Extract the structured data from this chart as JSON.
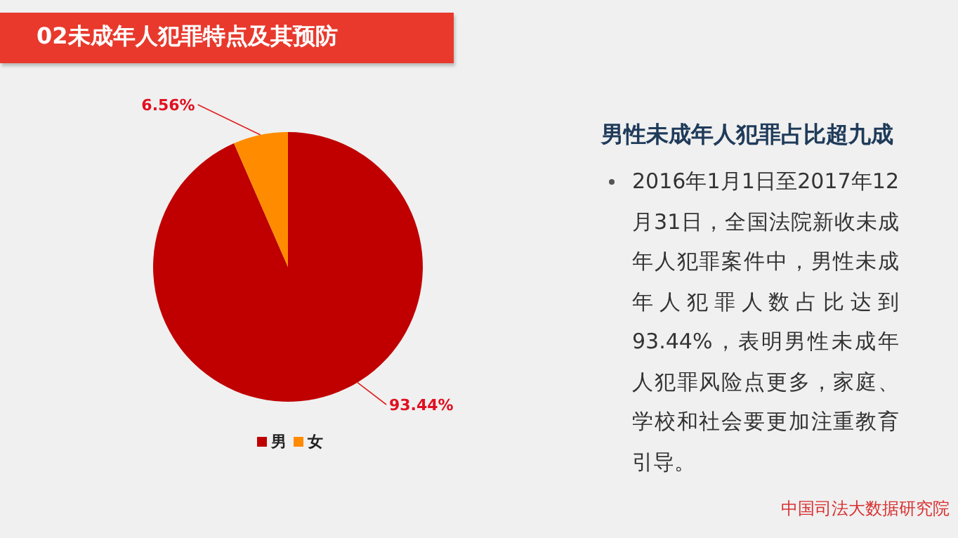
{
  "chart_data": [
    {
      "type": "pie",
      "title": "02未成年人犯罪特点及其预防",
      "categories": [
        "男",
        "女"
      ],
      "values": [
        93.44,
        6.56
      ],
      "colors": [
        "#c00000",
        "#ff8c00"
      ],
      "legend": "bottom",
      "value_labels": [
        "93.44%",
        "6.56%"
      ]
    },
    {
      "type": "other",
      "title": "男性未成年人犯罪占比超九成",
      "annotations": [
        "2016年1月1日至2017年12月31日，全国法院新收未成年人犯罪案件中，男性未成年人犯罪人数占比达到93.44%，表明男性未成年人犯罪风险点更多，家庭、学校和社会要更加注重教育引导。",
        "中国司法大数据研究院"
      ]
    }
  ]
}
